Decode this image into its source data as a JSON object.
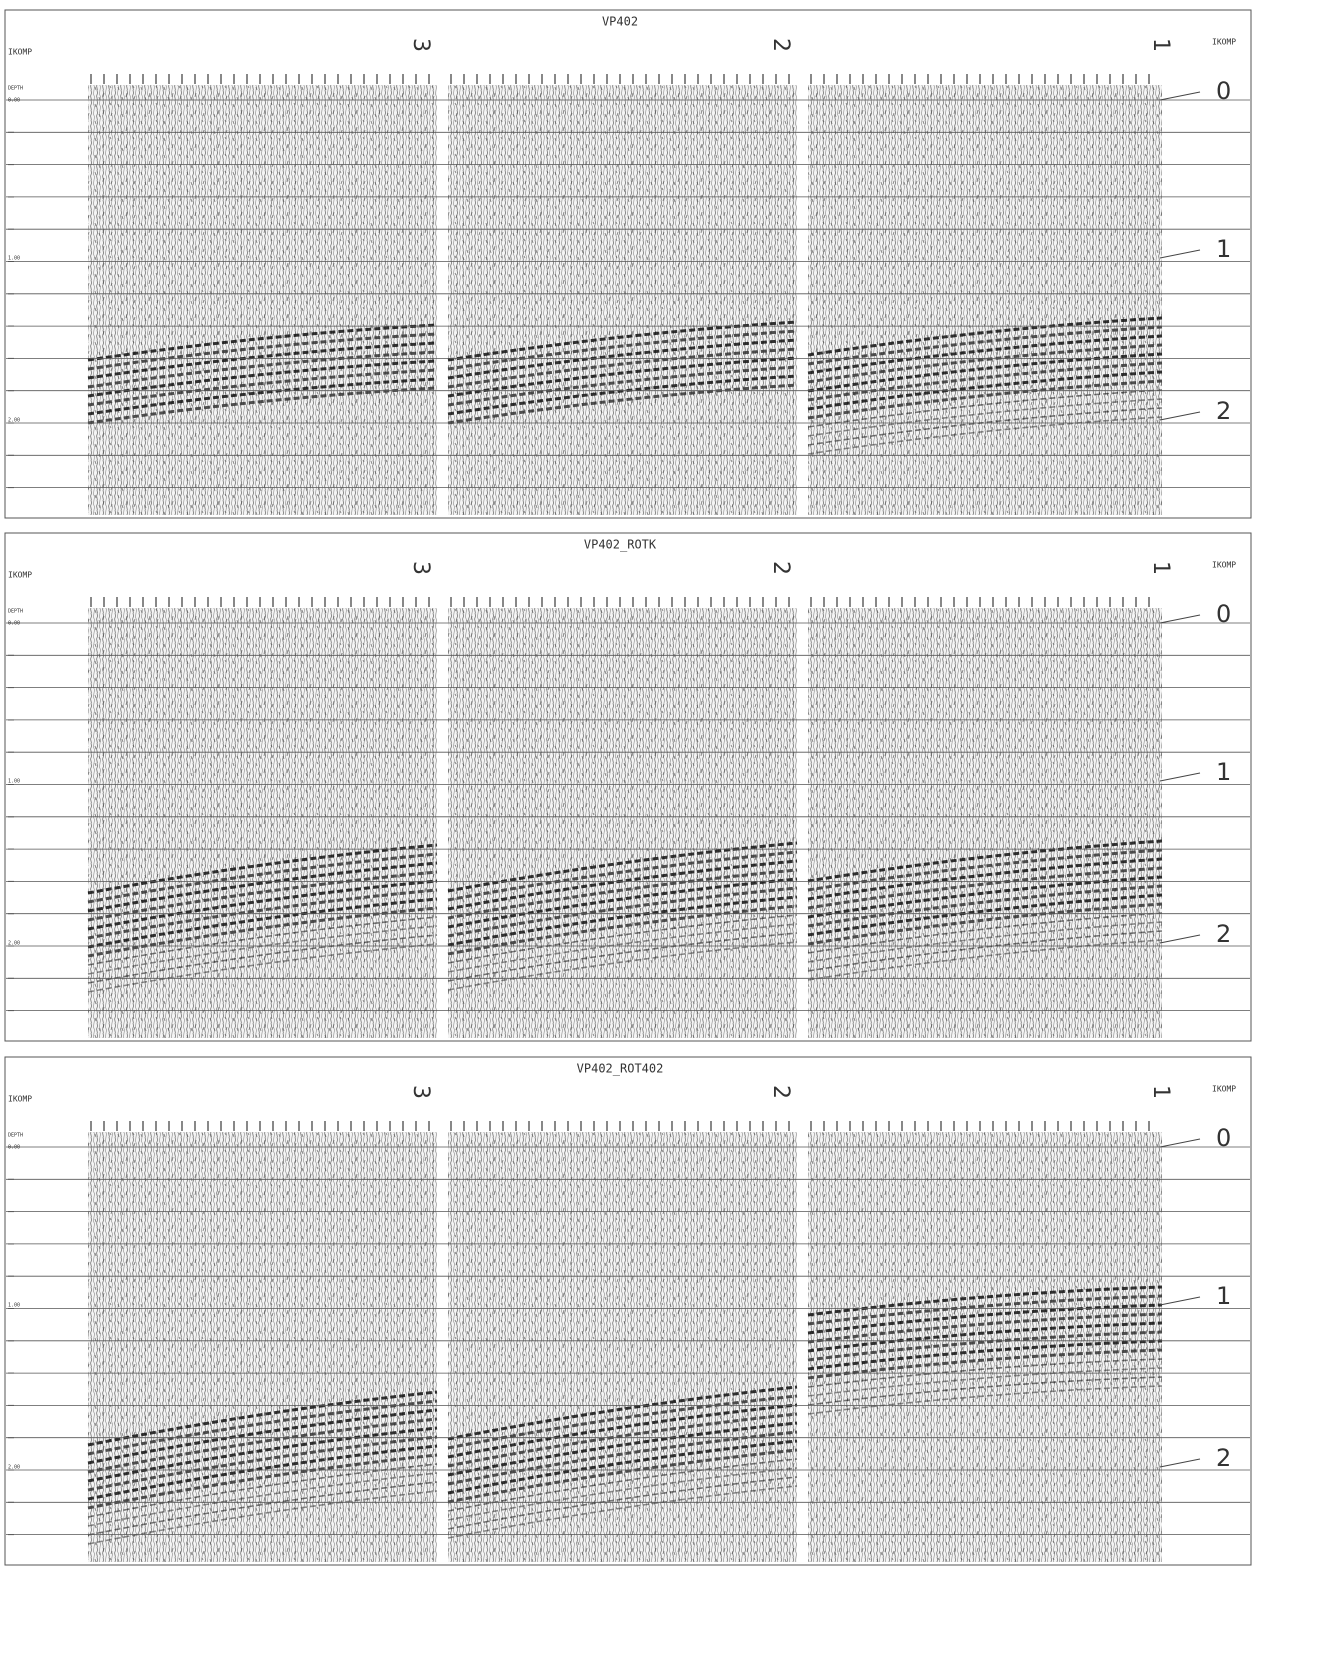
{
  "panels": [
    {
      "title": "VP402",
      "left_label": "IKOMP",
      "right_label": "IKOMP",
      "axis_title": "DEPTH",
      "components": [
        "3",
        "2",
        "1"
      ],
      "axis_labels": [
        "0.00",
        "1.00",
        "2.00"
      ],
      "time_marks": [
        "0",
        "1",
        "2"
      ]
    },
    {
      "title": "VP402_ROTK",
      "left_label": "IKOMP",
      "right_label": "IKOMP",
      "axis_title": "DEPTH",
      "components": [
        "3",
        "2",
        "1"
      ],
      "axis_labels": [
        "0.00",
        "1.00",
        "2.00"
      ],
      "time_marks": [
        "0",
        "1",
        "2"
      ]
    },
    {
      "title": "VP402_ROT402",
      "left_label": "IKOMP",
      "right_label": "IKOMP",
      "axis_title": "DEPTH",
      "components": [
        "3",
        "2",
        "1"
      ],
      "axis_labels": [
        "0.00",
        "1.00",
        "2.00"
      ],
      "time_marks": [
        "0",
        "1",
        "2"
      ]
    }
  ]
}
